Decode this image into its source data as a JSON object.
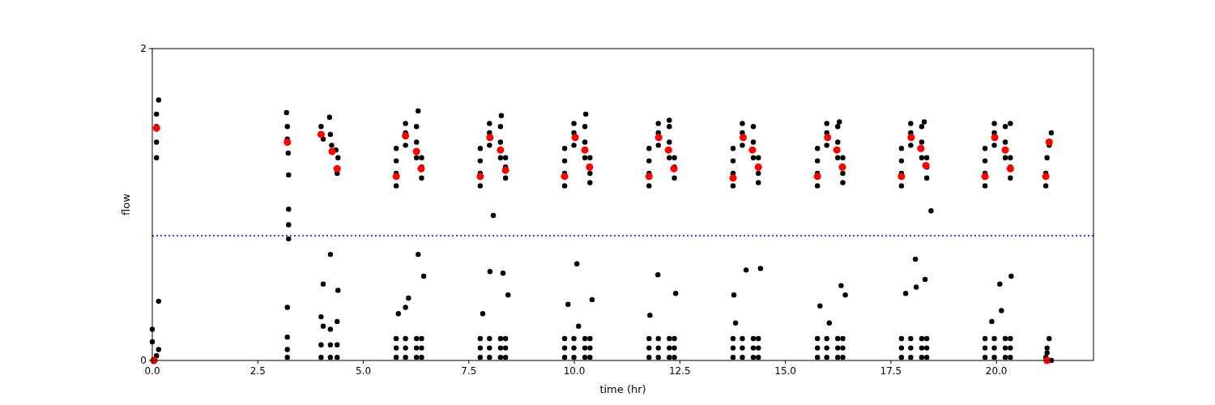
{
  "chart_data": {
    "type": "scatter",
    "xlabel": "time (hr)",
    "ylabel": "flow",
    "xlim": [
      0,
      22.3
    ],
    "ylim": [
      0,
      2
    ],
    "xticks": [
      {
        "value": 0,
        "label": "0.0"
      },
      {
        "value": 2.5,
        "label": "2.5"
      },
      {
        "value": 5,
        "label": "5.0"
      },
      {
        "value": 7.5,
        "label": "7.5"
      },
      {
        "value": 10,
        "label": "10.0"
      },
      {
        "value": 12.5,
        "label": "12.5"
      },
      {
        "value": 15,
        "label": "15.0"
      },
      {
        "value": 17.5,
        "label": "17.5"
      },
      {
        "value": 20,
        "label": "20.0"
      }
    ],
    "yticks": [
      0,
      2
    ],
    "grid": false,
    "marker": "circle",
    "ref_lines": [
      {
        "axis": "y",
        "value": 0.8,
        "color": "#0000ff",
        "line_style": "dotted"
      }
    ],
    "series": [
      {
        "color": "#000000",
        "x": [
          0.1,
          0.1,
          0.1,
          0.1,
          0.15,
          0.15,
          0,
          0,
          0.1,
          0.15,
          3.18,
          3.2,
          3.2,
          3.22,
          3.23,
          3.23,
          3.23,
          3.23,
          3.2,
          3.2,
          3.2,
          3.2,
          4.0,
          4.05,
          4.2,
          4.22,
          4.25,
          4.38,
          4.4,
          4.35,
          4.05,
          4.22,
          4.4,
          4.0,
          4.05,
          4.22,
          4.38,
          4.0,
          4.0,
          4.22,
          4.22,
          4.38,
          4.38,
          5.78,
          5.78,
          5.78,
          5.78,
          5.78,
          5.78,
          5.78,
          6.0,
          6.0,
          6.0,
          6.0,
          6.0,
          6.0,
          6.26,
          6.26,
          6.26,
          6.26,
          6.26,
          6.26,
          6.38,
          6.38,
          6.38,
          6.38,
          6.38,
          6.38,
          6.3,
          6.3,
          6.43,
          6.07,
          5.83,
          6.0,
          7.77,
          7.77,
          7.77,
          7.77,
          7.77,
          7.77,
          7.77,
          7.99,
          7.99,
          7.99,
          7.99,
          7.99,
          7.99,
          8.25,
          8.25,
          8.25,
          8.25,
          8.25,
          8.25,
          8.37,
          8.37,
          8.37,
          8.37,
          8.37,
          8.37,
          8.08,
          8.0,
          8.31,
          8.43,
          7.83,
          8.27,
          9.77,
          9.77,
          9.77,
          9.77,
          9.77,
          9.77,
          9.77,
          9.99,
          9.99,
          9.99,
          9.99,
          9.99,
          9.99,
          10.25,
          10.25,
          10.25,
          10.25,
          10.25,
          10.25,
          10.37,
          10.37,
          10.37,
          10.37,
          10.37,
          10.37,
          10.27,
          10.06,
          9.85,
          10.42,
          10.1,
          11.77,
          11.77,
          11.77,
          11.77,
          11.77,
          11.77,
          11.77,
          11.99,
          11.99,
          11.99,
          11.99,
          11.99,
          11.99,
          12.25,
          12.25,
          12.25,
          12.25,
          12.25,
          12.25,
          12.37,
          12.37,
          12.37,
          12.37,
          12.37,
          12.37,
          12.25,
          11.98,
          12.4,
          11.79,
          13.76,
          13.76,
          13.76,
          13.76,
          13.76,
          13.76,
          13.76,
          13.98,
          13.98,
          13.98,
          13.98,
          13.98,
          13.98,
          14.24,
          14.24,
          14.24,
          14.24,
          14.24,
          14.24,
          14.36,
          14.36,
          14.36,
          14.36,
          14.36,
          14.36,
          14.07,
          14.41,
          13.78,
          13.82,
          15.76,
          15.76,
          15.76,
          15.76,
          15.76,
          15.76,
          15.76,
          15.98,
          15.98,
          15.98,
          15.98,
          15.98,
          15.98,
          16.24,
          16.24,
          16.24,
          16.24,
          16.24,
          16.24,
          16.36,
          16.36,
          16.36,
          16.36,
          16.36,
          16.36,
          16.28,
          16.32,
          16.42,
          15.82,
          16.04,
          17.75,
          17.75,
          17.75,
          17.75,
          17.75,
          17.75,
          17.75,
          17.97,
          17.97,
          17.97,
          17.97,
          17.97,
          17.97,
          18.23,
          18.23,
          18.23,
          18.23,
          18.23,
          18.23,
          18.35,
          18.35,
          18.35,
          18.35,
          18.35,
          18.35,
          18.29,
          18.45,
          18.08,
          18.31,
          17.85,
          18.1,
          19.73,
          19.73,
          19.73,
          19.73,
          19.73,
          19.73,
          19.73,
          19.95,
          19.95,
          19.95,
          19.95,
          19.95,
          19.95,
          20.21,
          20.21,
          20.21,
          20.21,
          20.21,
          20.21,
          20.33,
          20.33,
          20.33,
          20.33,
          20.33,
          20.33,
          20.33,
          20.35,
          20.08,
          20.12,
          19.89,
          21.17,
          21.17,
          21.2,
          21.25,
          21.3,
          21.17,
          21.2,
          21.25,
          21.2,
          21.3
        ],
        "values": [
          1.3,
          1.4,
          1.5,
          1.58,
          1.67,
          0.38,
          0.2,
          0.12,
          0.03,
          0.07,
          1.59,
          1.5,
          1.42,
          1.33,
          1.19,
          0.97,
          0.87,
          0.78,
          0.34,
          0.15,
          0.07,
          0.02,
          1.5,
          1.42,
          1.56,
          1.45,
          1.38,
          1.2,
          1.3,
          1.35,
          0.49,
          0.68,
          0.45,
          0.28,
          0.22,
          0.2,
          0.25,
          0.02,
          0.1,
          0.02,
          0.1,
          0.02,
          0.1,
          1.12,
          1.2,
          1.28,
          1.36,
          0.02,
          0.08,
          0.14,
          1.38,
          1.46,
          1.52,
          0.02,
          0.08,
          0.14,
          1.3,
          1.4,
          1.5,
          0.02,
          0.08,
          0.14,
          1.17,
          1.24,
          1.3,
          0.02,
          0.08,
          0.14,
          1.6,
          0.68,
          0.54,
          0.4,
          0.3,
          0.34,
          1.12,
          1.2,
          1.28,
          1.36,
          0.02,
          0.08,
          0.14,
          1.38,
          1.46,
          1.52,
          0.02,
          0.08,
          0.14,
          1.3,
          1.4,
          1.5,
          0.02,
          0.08,
          0.14,
          1.17,
          1.24,
          1.3,
          0.02,
          0.08,
          0.14,
          0.93,
          0.57,
          0.56,
          0.42,
          0.3,
          1.57,
          1.12,
          1.2,
          1.28,
          1.36,
          0.02,
          0.08,
          0.14,
          1.38,
          1.46,
          1.52,
          0.02,
          0.08,
          0.14,
          1.3,
          1.4,
          1.5,
          0.02,
          0.08,
          0.14,
          1.14,
          1.2,
          1.3,
          0.02,
          0.08,
          0.14,
          1.58,
          0.62,
          0.36,
          0.39,
          0.22,
          1.12,
          1.2,
          1.28,
          1.36,
          0.02,
          0.08,
          0.14,
          1.38,
          1.46,
          1.52,
          0.02,
          0.08,
          0.14,
          1.3,
          1.4,
          1.5,
          0.02,
          0.08,
          0.14,
          1.17,
          1.24,
          1.3,
          0.02,
          0.08,
          0.14,
          1.54,
          0.55,
          0.43,
          0.29,
          1.12,
          1.2,
          1.28,
          1.36,
          0.02,
          0.08,
          0.14,
          1.38,
          1.46,
          1.52,
          0.02,
          0.08,
          0.14,
          1.3,
          1.4,
          1.5,
          0.02,
          0.08,
          0.14,
          1.14,
          1.2,
          1.3,
          0.02,
          0.08,
          0.14,
          0.58,
          0.59,
          0.42,
          0.24,
          1.12,
          1.2,
          1.28,
          1.36,
          0.02,
          0.08,
          0.14,
          1.38,
          1.46,
          1.52,
          0.02,
          0.08,
          0.14,
          1.3,
          1.4,
          1.5,
          0.02,
          0.08,
          0.14,
          1.14,
          1.2,
          1.3,
          0.02,
          0.08,
          0.14,
          1.53,
          0.48,
          0.42,
          0.35,
          0.24,
          1.12,
          1.2,
          1.28,
          1.36,
          0.02,
          0.08,
          0.14,
          1.38,
          1.46,
          1.52,
          0.02,
          0.08,
          0.14,
          1.3,
          1.4,
          1.5,
          0.02,
          0.08,
          0.14,
          1.17,
          1.24,
          1.3,
          0.02,
          0.08,
          0.14,
          1.53,
          0.96,
          0.65,
          0.52,
          0.43,
          0.47,
          1.12,
          1.2,
          1.28,
          1.36,
          0.02,
          0.08,
          0.14,
          1.38,
          1.46,
          1.52,
          0.02,
          0.08,
          0.14,
          1.3,
          1.4,
          1.5,
          0.02,
          0.08,
          0.14,
          1.17,
          1.24,
          1.3,
          0.02,
          0.08,
          0.14,
          1.52,
          0.54,
          0.49,
          0.32,
          0.25,
          1.12,
          1.2,
          1.3,
          1.38,
          1.46,
          0.02,
          0.08,
          0.14,
          0.05,
          0
        ]
      },
      {
        "color": "#ff0000",
        "x": [
          0.04,
          0.1,
          3.2,
          4.0,
          4.26,
          4.38,
          5.78,
          6.0,
          6.26,
          6.37,
          7.77,
          8.0,
          8.25,
          8.37,
          9.77,
          10.02,
          10.25,
          10.36,
          11.77,
          12.0,
          12.23,
          12.36,
          13.76,
          14.0,
          14.22,
          14.36,
          15.76,
          16.0,
          16.22,
          16.35,
          17.75,
          17.98,
          18.21,
          18.33,
          19.73,
          19.96,
          20.21,
          20.33,
          21.17,
          21.25,
          21.2
        ],
        "values": [
          0,
          1.49,
          1.4,
          1.45,
          1.34,
          1.23,
          1.18,
          1.44,
          1.34,
          1.23,
          1.18,
          1.43,
          1.35,
          1.22,
          1.18,
          1.43,
          1.35,
          1.24,
          1.18,
          1.43,
          1.35,
          1.23,
          1.17,
          1.43,
          1.35,
          1.24,
          1.18,
          1.43,
          1.35,
          1.24,
          1.18,
          1.43,
          1.36,
          1.25,
          1.18,
          1.43,
          1.35,
          1.23,
          1.18,
          1.4,
          0
        ]
      }
    ]
  }
}
